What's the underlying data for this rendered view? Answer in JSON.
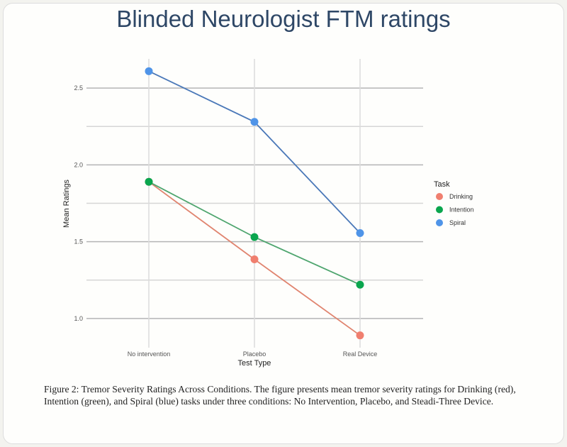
{
  "chart_data": {
    "type": "line",
    "title": "Blinded Neurologist FTM ratings",
    "xlabel": "Test Type",
    "ylabel": "Mean Ratings",
    "categories": [
      "No intervention",
      "Placebo",
      "Real Device"
    ],
    "ylim": [
      0.81,
      2.69
    ],
    "yticks": [
      1.0,
      1.5,
      2.0,
      2.5
    ],
    "ytick_labels": [
      "1.0",
      "1.5",
      "2.0",
      "2.5"
    ],
    "grid": true,
    "legend": {
      "title": "Task",
      "placement": "right"
    },
    "series": [
      {
        "name": "Drinking",
        "color": "#f07f6f",
        "line_color": "#e0846f",
        "values": [
          1.89,
          1.385,
          0.89
        ]
      },
      {
        "name": "Intention",
        "color": "#0aa64e",
        "line_color": "#4ea56e",
        "values": [
          1.89,
          1.53,
          1.22
        ]
      },
      {
        "name": "Spiral",
        "color": "#4f94e8",
        "line_color": "#4a78b8",
        "values": [
          2.61,
          2.28,
          1.556
        ]
      }
    ]
  },
  "caption": "Figure 2: Tremor Severity Ratings Across Conditions. The figure presents mean tremor severity ratings for Drinking (red), Intention (green), and Spiral (blue) tasks under three conditions: No Intervention, Placebo, and Steadi-Three Device."
}
